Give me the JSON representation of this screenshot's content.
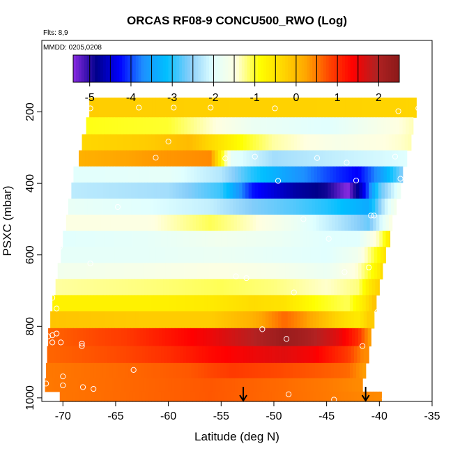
{
  "chart_data": {
    "type": "heatmap",
    "title": "ORCAS RF08-9 CONCU500_RWO (Log)",
    "flights_label": "Flts: 8,9",
    "date_label": "MMDD: 0205,0208",
    "xlabel": "Latitude (deg N)",
    "ylabel": "PSXC (mbar)",
    "xlim": [
      -72,
      -35
    ],
    "ylim": [
      1010,
      0
    ],
    "x_ticks": [
      -70,
      -65,
      -60,
      -55,
      -50,
      -45,
      -40,
      -35
    ],
    "y_ticks": [
      200,
      400,
      600,
      800,
      1000
    ],
    "colorbar": {
      "range": [
        -5.4,
        2.5
      ],
      "ticks": [
        -5,
        -4,
        -3,
        -2,
        -1,
        0,
        1,
        2
      ],
      "colors": [
        "#8a2be2",
        "#00008b",
        "#0000ff",
        "#1e90ff",
        "#00bfff",
        "#87cefa",
        "#e0ffff",
        "#ffffe0",
        "#ffff00",
        "#ffd700",
        "#ffa500",
        "#ff4500",
        "#ff0000",
        "#b22222",
        "#8b1a1a"
      ]
    },
    "bands": [
      {
        "p": 190,
        "x0": -67.5,
        "x1": -36.5,
        "knots": [
          [
            -72,
            -0.2
          ],
          [
            -35,
            -0.3
          ]
        ]
      },
      {
        "p": 240,
        "x0": -67.8,
        "x1": -36.8,
        "knots": [
          [
            -72,
            -0.9
          ],
          [
            -60,
            -1.0
          ],
          [
            -56,
            -1.4
          ],
          [
            -52,
            -1.8
          ],
          [
            -45,
            -2.0
          ],
          [
            -40,
            -1.6
          ],
          [
            -35,
            -1.2
          ]
        ]
      },
      {
        "p": 285,
        "x0": -68.2,
        "x1": -37.0,
        "knots": [
          [
            -72,
            -0.4
          ],
          [
            -62,
            -0.2
          ],
          [
            -58,
            0.0
          ],
          [
            -53,
            -0.9
          ],
          [
            -50,
            -1.3
          ],
          [
            -44,
            -1.6
          ],
          [
            -38,
            -1.4
          ],
          [
            -35,
            -1.2
          ]
        ]
      },
      {
        "p": 330,
        "x0": -68.5,
        "x1": -37.4,
        "knots": [
          [
            -72,
            0.0
          ],
          [
            -62,
            0.3
          ],
          [
            -56,
            0.4
          ],
          [
            -55,
            -0.8
          ],
          [
            -54,
            -1.9
          ],
          [
            -50,
            -2.4
          ],
          [
            -44,
            -2.2
          ],
          [
            -37,
            -2.0
          ]
        ]
      },
      {
        "p": 375,
        "x0": -69.0,
        "x1": -37.8,
        "knots": [
          [
            -72,
            -2.0
          ],
          [
            -60,
            -1.9
          ],
          [
            -55,
            -2.3
          ],
          [
            -52,
            -3.0
          ],
          [
            -48,
            -3.6
          ],
          [
            -44,
            -4.1
          ],
          [
            -42,
            -4.3
          ],
          [
            -40,
            -3.6
          ],
          [
            -37,
            -2.2
          ]
        ]
      },
      {
        "p": 420,
        "x0": -69.2,
        "x1": -38.0,
        "knots": [
          [
            -72,
            -2.2
          ],
          [
            -60,
            -2.4
          ],
          [
            -55,
            -2.9
          ],
          [
            -52,
            -4.2
          ],
          [
            -48,
            -4.7
          ],
          [
            -45,
            -4.9
          ],
          [
            -43,
            -5.4
          ],
          [
            -41.5,
            -4.4
          ],
          [
            -40,
            -2.8
          ],
          [
            -38,
            -1.8
          ]
        ]
      },
      {
        "p": 465,
        "x0": -69.5,
        "x1": -38.4,
        "knots": [
          [
            -72,
            -1.8
          ],
          [
            -62,
            -2.0
          ],
          [
            -56,
            -2.2
          ],
          [
            -52,
            -2.6
          ],
          [
            -48,
            -2.8
          ],
          [
            -45,
            -3.0
          ],
          [
            -41,
            -3.4
          ],
          [
            -39.5,
            -2.2
          ],
          [
            -38,
            -1.4
          ]
        ]
      },
      {
        "p": 510,
        "x0": -69.7,
        "x1": -38.8,
        "knots": [
          [
            -72,
            -1.5
          ],
          [
            -62,
            -1.5
          ],
          [
            -56,
            -1.1
          ],
          [
            -52,
            -1.4
          ],
          [
            -48,
            -1.8
          ],
          [
            -44,
            -2.3
          ],
          [
            -41,
            -2.7
          ],
          [
            -39,
            -1.6
          ],
          [
            -38,
            -0.8
          ]
        ]
      },
      {
        "p": 555,
        "x0": -70.0,
        "x1": -39.0,
        "knots": [
          [
            -72,
            -2.0
          ],
          [
            -62,
            -1.9
          ],
          [
            -55,
            -1.7
          ],
          [
            -50,
            -1.8
          ],
          [
            -45,
            -2.0
          ],
          [
            -42,
            -2.0
          ],
          [
            -40,
            -1.3
          ],
          [
            -39,
            -0.5
          ]
        ]
      },
      {
        "p": 600,
        "x0": -70.2,
        "x1": -39.4,
        "knots": [
          [
            -72,
            -1.9
          ],
          [
            -62,
            -1.9
          ],
          [
            -55,
            -1.8
          ],
          [
            -50,
            -1.9
          ],
          [
            -45,
            -2.0
          ],
          [
            -42,
            -1.7
          ],
          [
            -40,
            -0.8
          ],
          [
            -39,
            -0.2
          ]
        ]
      },
      {
        "p": 645,
        "x0": -70.5,
        "x1": -39.7,
        "knots": [
          [
            -72,
            -1.7
          ],
          [
            -62,
            -1.6
          ],
          [
            -55,
            -1.5
          ],
          [
            -50,
            -1.6
          ],
          [
            -45,
            -1.8
          ],
          [
            -42,
            -1.4
          ],
          [
            -40,
            -0.6
          ],
          [
            -39.5,
            -0.1
          ]
        ]
      },
      {
        "p": 690,
        "x0": -70.7,
        "x1": -40.0,
        "knots": [
          [
            -72,
            -1.3
          ],
          [
            -62,
            -1.2
          ],
          [
            -55,
            -1.1
          ],
          [
            -50,
            -1.2
          ],
          [
            -45,
            -1.4
          ],
          [
            -42,
            -1.2
          ],
          [
            -41,
            -0.6
          ],
          [
            -40,
            -0.2
          ]
        ]
      },
      {
        "p": 735,
        "x0": -71.0,
        "x1": -40.3,
        "knots": [
          [
            -72,
            -0.7
          ],
          [
            -62,
            -0.7
          ],
          [
            -56,
            -0.6
          ],
          [
            -52,
            -0.4
          ],
          [
            -49,
            -0.5
          ],
          [
            -46,
            -0.9
          ],
          [
            -43,
            -1.1
          ],
          [
            -41.5,
            -0.6
          ],
          [
            -40.5,
            -0.1
          ]
        ]
      },
      {
        "p": 780,
        "x0": -71.2,
        "x1": -40.5,
        "knots": [
          [
            -72,
            -0.1
          ],
          [
            -62,
            -0.2
          ],
          [
            -56,
            -0.2
          ],
          [
            -52,
            0.1
          ],
          [
            -49,
            0.6
          ],
          [
            -47,
            0.3
          ],
          [
            -44,
            -0.3
          ],
          [
            -42,
            -0.6
          ],
          [
            -41,
            -0.2
          ]
        ]
      },
      {
        "p": 830,
        "x0": -71.4,
        "x1": -40.8,
        "knots": [
          [
            -72,
            0.6
          ],
          [
            -64,
            0.9
          ],
          [
            -60,
            1.2
          ],
          [
            -56,
            1.5
          ],
          [
            -52,
            1.9
          ],
          [
            -49,
            2.3
          ],
          [
            -47,
            2.1
          ],
          [
            -44,
            1.6
          ],
          [
            -42,
            1.0
          ],
          [
            -41,
            0.3
          ]
        ]
      },
      {
        "p": 880,
        "x0": -71.5,
        "x1": -41.0,
        "knots": [
          [
            -72,
            0.6
          ],
          [
            -64,
            0.8
          ],
          [
            -60,
            1.0
          ],
          [
            -56,
            1.3
          ],
          [
            -52,
            1.5
          ],
          [
            -49,
            1.6
          ],
          [
            -46,
            1.4
          ],
          [
            -43,
            0.9
          ],
          [
            -41.5,
            0.4
          ]
        ]
      },
      {
        "p": 925,
        "x0": -71.6,
        "x1": -41.3,
        "knots": [
          [
            -72,
            0.5
          ],
          [
            -64,
            0.6
          ],
          [
            -58,
            0.7
          ],
          [
            -54,
            0.9
          ],
          [
            -50,
            0.8
          ],
          [
            -46,
            0.7
          ],
          [
            -43,
            0.6
          ],
          [
            -41.5,
            0.3
          ]
        ]
      },
      {
        "p": 965,
        "x0": -71.7,
        "x1": -41.6,
        "knots": [
          [
            -72,
            0.5
          ],
          [
            -64,
            0.6
          ],
          [
            -56,
            0.7
          ],
          [
            -50,
            0.6
          ],
          [
            -45,
            0.5
          ],
          [
            -42,
            0.4
          ]
        ]
      },
      {
        "p": 1000,
        "x0": -70.3,
        "x1": -39.8,
        "knots": [
          [
            -72,
            0.5
          ],
          [
            -64,
            0.6
          ],
          [
            -56,
            0.7
          ],
          [
            -50,
            0.6
          ],
          [
            -45,
            0.5
          ],
          [
            -40,
            0.4
          ]
        ]
      }
    ],
    "markers": [
      [
        -67.4,
        190
      ],
      [
        -62.8,
        188
      ],
      [
        -59.5,
        188
      ],
      [
        -56.0,
        188
      ],
      [
        -49.9,
        190
      ],
      [
        -38.2,
        198
      ],
      [
        -36.3,
        190
      ],
      [
        -35.5,
        188
      ],
      [
        -69.9,
        287
      ],
      [
        -60.0,
        283
      ],
      [
        -61.2,
        328
      ],
      [
        -54.6,
        330
      ],
      [
        -51.8,
        325
      ],
      [
        -45.9,
        329
      ],
      [
        -43.1,
        342
      ],
      [
        -38.5,
        325
      ],
      [
        -69.3,
        390
      ],
      [
        -49.6,
        393
      ],
      [
        -42.2,
        392
      ],
      [
        -38.0,
        387
      ],
      [
        -64.8,
        466
      ],
      [
        -47.2,
        500
      ],
      [
        -40.8,
        490
      ],
      [
        -40.5,
        490
      ],
      [
        -70.5,
        485
      ],
      [
        -70.3,
        578
      ],
      [
        -44.8,
        555
      ],
      [
        -67.4,
        624
      ],
      [
        -43.3,
        648
      ],
      [
        -41.0,
        635
      ],
      [
        -53.6,
        660
      ],
      [
        -52.6,
        665
      ],
      [
        -48.1,
        705
      ],
      [
        -71.0,
        720
      ],
      [
        -70.6,
        750
      ],
      [
        -40.2,
        760
      ],
      [
        -51.1,
        808
      ],
      [
        -71.0,
        825
      ],
      [
        -70.6,
        820
      ],
      [
        -71.4,
        828
      ],
      [
        -71.0,
        845
      ],
      [
        -70.2,
        845
      ],
      [
        -68.2,
        848
      ],
      [
        -68.2,
        855
      ],
      [
        -48.8,
        835
      ],
      [
        -41.6,
        855
      ],
      [
        -63.3,
        922
      ],
      [
        -70.0,
        940
      ],
      [
        -71.6,
        960
      ],
      [
        -70.0,
        965
      ],
      [
        -68.1,
        970
      ],
      [
        -67.1,
        975
      ],
      [
        -48.6,
        990
      ],
      [
        -44.3,
        1005
      ],
      [
        -39.5,
        1002
      ]
    ],
    "arrows": [
      -52.9,
      -41.3
    ]
  }
}
